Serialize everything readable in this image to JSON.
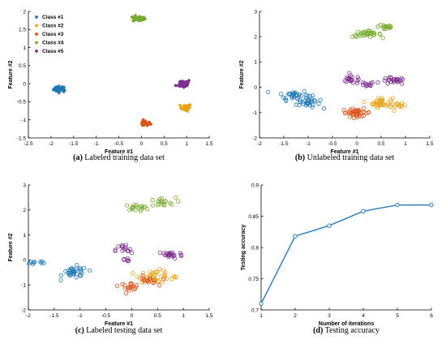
{
  "chart_data": [
    {
      "type": "scatter",
      "caption_tag": "(a)",
      "caption_text": "Labeled training data set",
      "xlabel": "Feature #1",
      "ylabel": "Feature #2",
      "xlim": [
        -2.5,
        1.5
      ],
      "ylim": [
        -1.5,
        2
      ],
      "xticks": [
        -2.5,
        -2,
        -1.5,
        -1,
        -0.5,
        0,
        0.5,
        1,
        1.5
      ],
      "yticks": [
        -1.5,
        -1,
        -0.5,
        0,
        0.5,
        1,
        1.5,
        2
      ],
      "legend": "top-left",
      "marker": "filled",
      "series": [
        {
          "name": "Class #1",
          "color": "#1f77b4",
          "clusters": [
            {
              "cx": -1.8,
              "cy": -0.15,
              "sx": 0.07,
              "sy": 0.04,
              "n": 40
            }
          ]
        },
        {
          "name": "Class #2",
          "color": "#e8a317",
          "clusters": [
            {
              "cx": 0.98,
              "cy": -0.66,
              "sx": 0.06,
              "sy": 0.05,
              "n": 25
            }
          ]
        },
        {
          "name": "Class #3",
          "color": "#d95319",
          "clusters": [
            {
              "cx": 0.08,
              "cy": -1.1,
              "sx": 0.06,
              "sy": 0.04,
              "n": 30
            }
          ]
        },
        {
          "name": "Class #4",
          "color": "#77ac30",
          "clusters": [
            {
              "cx": -0.05,
              "cy": 1.8,
              "sx": 0.07,
              "sy": 0.04,
              "n": 30
            }
          ]
        },
        {
          "name": "Class #5",
          "color": "#7e2f8e",
          "clusters": [
            {
              "cx": 0.93,
              "cy": 0.0,
              "sx": 0.08,
              "sy": 0.06,
              "n": 35
            }
          ]
        }
      ]
    },
    {
      "type": "scatter",
      "caption_tag": "(b)",
      "caption_text": "Unlabeled training data set",
      "xlabel": "Feature #1",
      "ylabel": "Feature #2",
      "xlim": [
        -2,
        1.5
      ],
      "ylim": [
        -2,
        3
      ],
      "xticks": [
        -2,
        -1.5,
        -1,
        -0.5,
        0,
        0.5,
        1,
        1.5
      ],
      "yticks": [
        -2,
        -1,
        0,
        1,
        2,
        3
      ],
      "marker": "open",
      "series": [
        {
          "color": "#1f77b4",
          "clusters": [
            {
              "cx": -1.3,
              "cy": -0.3,
              "sx": 0.15,
              "sy": 0.1,
              "n": 30
            },
            {
              "cx": -1.0,
              "cy": -0.6,
              "sx": 0.12,
              "sy": 0.12,
              "n": 30
            }
          ]
        },
        {
          "color": "#e8a317",
          "clusters": [
            {
              "cx": 0.5,
              "cy": -0.6,
              "sx": 0.12,
              "sy": 0.1,
              "n": 35
            },
            {
              "cx": 0.85,
              "cy": -0.75,
              "sx": 0.08,
              "sy": 0.05,
              "n": 12
            }
          ]
        },
        {
          "color": "#d95319",
          "clusters": [
            {
              "cx": 0.0,
              "cy": -1.0,
              "sx": 0.15,
              "sy": 0.08,
              "n": 40
            }
          ]
        },
        {
          "color": "#77ac30",
          "clusters": [
            {
              "cx": 0.2,
              "cy": 2.1,
              "sx": 0.15,
              "sy": 0.06,
              "n": 35
            },
            {
              "cx": 0.6,
              "cy": 2.4,
              "sx": 0.08,
              "sy": 0.08,
              "n": 20
            }
          ]
        },
        {
          "color": "#7e2f8e",
          "clusters": [
            {
              "cx": -0.1,
              "cy": 0.3,
              "sx": 0.12,
              "sy": 0.08,
              "n": 20
            },
            {
              "cx": 0.2,
              "cy": 0.1,
              "sx": 0.08,
              "sy": 0.06,
              "n": 12
            },
            {
              "cx": 0.75,
              "cy": 0.25,
              "sx": 0.12,
              "sy": 0.07,
              "n": 25
            }
          ]
        }
      ]
    },
    {
      "type": "scatter",
      "caption_tag": "(c)",
      "caption_text": "Labeled testing data set",
      "xlabel": "Feature #1",
      "ylabel": "Feature #2",
      "xlim": [
        -2,
        1.5
      ],
      "ylim": [
        -2,
        3
      ],
      "xticks": [
        -2,
        -1.5,
        -1,
        -0.5,
        0,
        0.5,
        1,
        1.5
      ],
      "yticks": [
        -2,
        -1,
        0,
        1,
        2,
        3
      ],
      "marker": "open",
      "series": [
        {
          "color": "#1f77b4",
          "clusters": [
            {
              "cx": -1.1,
              "cy": -0.5,
              "sx": 0.12,
              "sy": 0.12,
              "n": 35
            },
            {
              "cx": -1.75,
              "cy": -0.1,
              "sx": 0.15,
              "sy": 0.04,
              "n": 10
            }
          ]
        },
        {
          "color": "#e8a317",
          "clusters": [
            {
              "cx": 0.45,
              "cy": -0.65,
              "sx": 0.15,
              "sy": 0.12,
              "n": 40
            },
            {
              "cx": 0.85,
              "cy": -0.7,
              "sx": 0.05,
              "sy": 0.05,
              "n": 5
            }
          ]
        },
        {
          "color": "#d95319",
          "clusters": [
            {
              "cx": -0.05,
              "cy": -1.05,
              "sx": 0.1,
              "sy": 0.07,
              "n": 20
            },
            {
              "cx": 0.3,
              "cy": -0.85,
              "sx": 0.1,
              "sy": 0.1,
              "n": 15
            }
          ]
        },
        {
          "color": "#77ac30",
          "clusters": [
            {
              "cx": 0.1,
              "cy": 2.1,
              "sx": 0.12,
              "sy": 0.06,
              "n": 20
            },
            {
              "cx": 0.55,
              "cy": 2.3,
              "sx": 0.15,
              "sy": 0.1,
              "n": 20
            }
          ]
        },
        {
          "color": "#7e2f8e",
          "clusters": [
            {
              "cx": -0.15,
              "cy": 0.4,
              "sx": 0.08,
              "sy": 0.12,
              "n": 15
            },
            {
              "cx": 0.75,
              "cy": 0.2,
              "sx": 0.12,
              "sy": 0.08,
              "n": 25
            },
            {
              "cx": -0.1,
              "cy": 0.0,
              "sx": 0.05,
              "sy": 0.05,
              "n": 6
            }
          ]
        }
      ]
    },
    {
      "type": "line",
      "caption_tag": "(d)",
      "caption_text": "Testing accuracy",
      "xlabel": "Number of iterations",
      "ylabel": "Testing accuracy",
      "xlim": [
        1,
        6
      ],
      "ylim": [
        0.7,
        0.9
      ],
      "xticks": [
        1,
        2,
        3,
        4,
        5,
        6
      ],
      "yticks": [
        0.7,
        0.75,
        0.8,
        0.85,
        0.9
      ],
      "grid": false,
      "color": "#2a7ab9",
      "x": [
        1,
        2,
        3,
        4,
        5,
        6
      ],
      "y": [
        0.71,
        0.818,
        0.835,
        0.858,
        0.868,
        0.868
      ]
    }
  ]
}
